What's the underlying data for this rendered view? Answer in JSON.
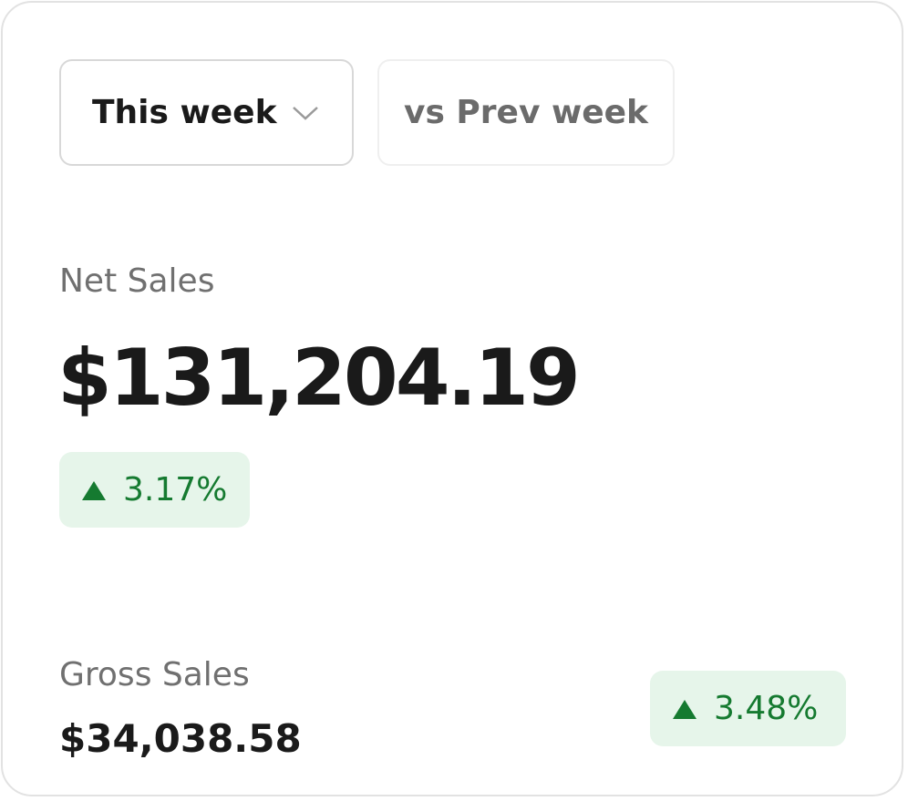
{
  "period_select": {
    "label": "This week"
  },
  "comparison": {
    "label": "vs Prev week"
  },
  "metrics": [
    {
      "label": "Net Sales",
      "value": "$131,204.19",
      "change": "3.17%"
    },
    {
      "label": "Gross Sales",
      "value": "$34,038.58",
      "change": "3.48%"
    }
  ]
}
